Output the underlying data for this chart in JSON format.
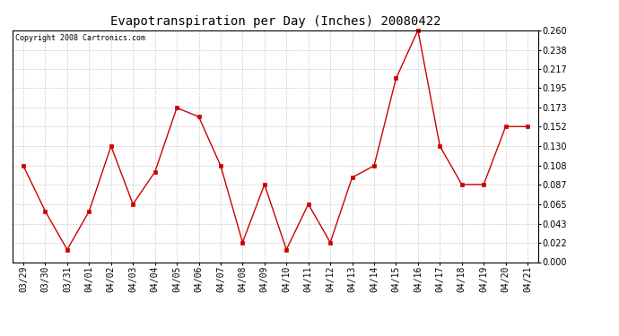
{
  "title": "Evapotranspiration per Day (Inches) 20080422",
  "copyright": "Copyright 2008 Cartronics.com",
  "dates": [
    "03/29",
    "03/30",
    "03/31",
    "04/01",
    "04/02",
    "04/03",
    "04/04",
    "04/05",
    "04/06",
    "04/07",
    "04/08",
    "04/09",
    "04/10",
    "04/11",
    "04/12",
    "04/13",
    "04/14",
    "04/15",
    "04/16",
    "04/17",
    "04/18",
    "04/19",
    "04/20",
    "04/21"
  ],
  "values": [
    0.108,
    0.057,
    0.014,
    0.057,
    0.13,
    0.065,
    0.101,
    0.173,
    0.163,
    0.108,
    0.022,
    0.087,
    0.014,
    0.065,
    0.022,
    0.095,
    0.108,
    0.206,
    0.26,
    0.13,
    0.087,
    0.087,
    0.152,
    0.152
  ],
  "line_color": "#cc0000",
  "marker": "s",
  "marker_size": 2.5,
  "ylim": [
    0.0,
    0.26
  ],
  "yticks": [
    0.0,
    0.022,
    0.043,
    0.065,
    0.087,
    0.108,
    0.13,
    0.152,
    0.173,
    0.195,
    0.217,
    0.238,
    0.26
  ],
  "grid_color": "#cccccc",
  "bg_color": "#ffffff",
  "title_fontsize": 10,
  "copyright_fontsize": 6,
  "tick_fontsize": 7,
  "figsize": [
    6.9,
    3.75
  ],
  "dpi": 100
}
